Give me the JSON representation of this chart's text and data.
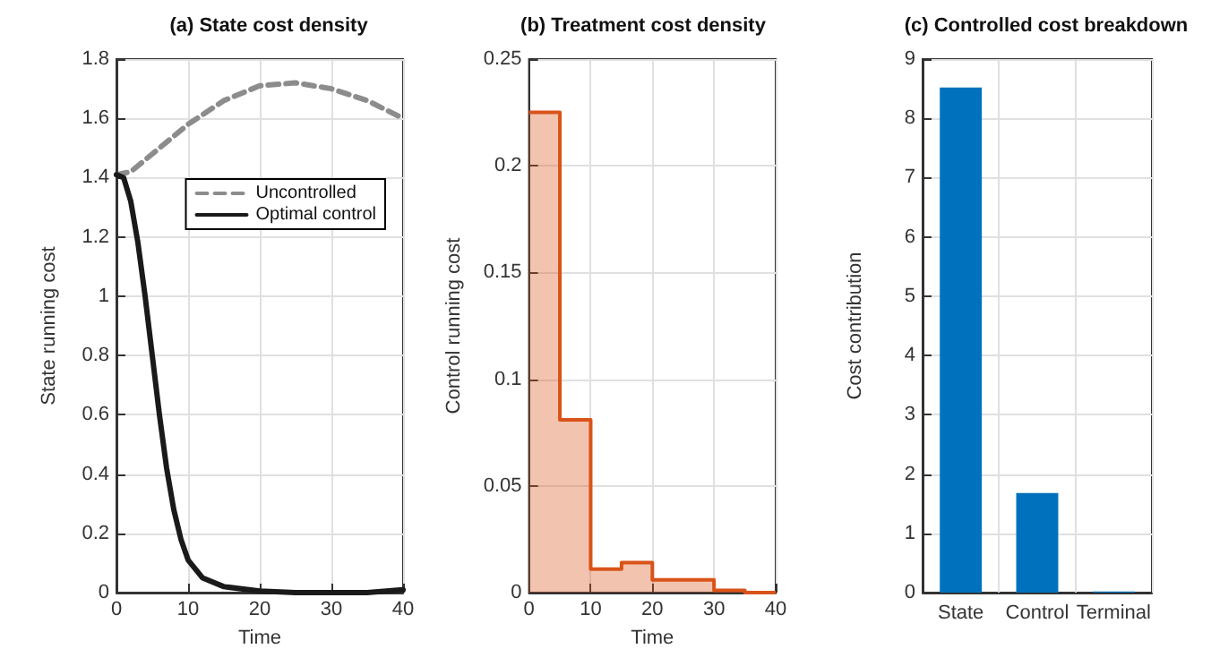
{
  "chart_data": [
    {
      "type": "line",
      "title": "(a) State cost density",
      "xlabel": "Time",
      "ylabel": "State running cost",
      "xlim": [
        0,
        40
      ],
      "xticks": [
        0,
        10,
        20,
        30,
        40
      ],
      "ylim": [
        0,
        1.8
      ],
      "yticks": [
        0,
        0.2,
        0.4,
        0.6,
        0.8,
        1,
        1.2,
        1.4,
        1.6,
        1.8
      ],
      "grid": true,
      "legend": "top right",
      "x": [
        0,
        1,
        2,
        3,
        4,
        5,
        6,
        7,
        8,
        9,
        10,
        12,
        15,
        20,
        25,
        30,
        35,
        40
      ],
      "series": [
        {
          "name": "Uncontrolled",
          "color": "#8c8c8c",
          "line_style": "dashed",
          "x": [
            0,
            2,
            5,
            10,
            15,
            20,
            25,
            30,
            35,
            40
          ],
          "values": [
            1.41,
            1.42,
            1.48,
            1.58,
            1.66,
            1.71,
            1.72,
            1.7,
            1.66,
            1.6
          ]
        },
        {
          "name": "Optimal control",
          "color": "#1a1a1a",
          "line_style": "solid",
          "values": [
            1.41,
            1.4,
            1.32,
            1.18,
            1.0,
            0.8,
            0.6,
            0.42,
            0.28,
            0.18,
            0.11,
            0.05,
            0.02,
            0.005,
            0,
            0,
            0,
            0.01
          ]
        }
      ]
    },
    {
      "type": "step",
      "title": "(b) Treatment cost density",
      "xlabel": "Time",
      "ylabel": "Control running cost",
      "xlim": [
        0,
        40
      ],
      "xticks": [
        0,
        10,
        20,
        30,
        40
      ],
      "ylim": [
        0,
        0.25
      ],
      "yticks": [
        0,
        0.05,
        0.1,
        0.15,
        0.2,
        0.25
      ],
      "grid": true,
      "x": [
        0,
        5,
        10,
        15,
        20,
        25,
        30,
        35,
        40
      ],
      "color": "#d95319",
      "values": [
        0.225,
        0.081,
        0.011,
        0.014,
        0.006,
        0.006,
        0.001,
        0,
        0
      ]
    },
    {
      "type": "bar",
      "title": "(c) Controlled cost breakdown",
      "ylabel": "Cost contribution",
      "categories": [
        "State",
        "Control",
        "Terminal"
      ],
      "values": [
        8.52,
        1.68,
        0.02
      ],
      "color": "#0072bd",
      "ylim": [
        0,
        9
      ],
      "yticks": [
        0,
        1,
        2,
        3,
        4,
        5,
        6,
        7,
        8,
        9
      ],
      "grid": true
    }
  ]
}
